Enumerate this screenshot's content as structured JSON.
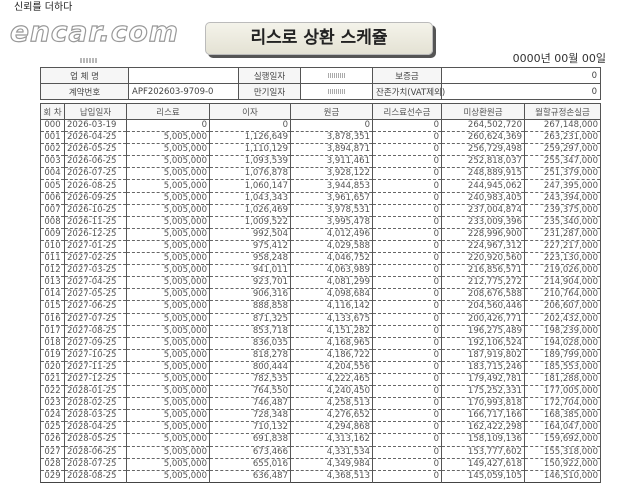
{
  "title": "리스로 상환 스케쥴",
  "print_date": "0000년 00월 00일",
  "info": {
    "company_label": "업 체 명",
    "company_value": "",
    "exec_date_label": "실행일자",
    "deposit_label": "보증금",
    "deposit_value": "0",
    "contract_label": "계약번호",
    "contract_value": "APF202603-9709-0",
    "maturity_label": "만기일자",
    "residual_label": "잔존가치(VAT제외)",
    "residual_value": "0"
  },
  "schedule": {
    "headers": [
      "회 차",
      "납입일자",
      "리스료",
      "이자",
      "원금",
      "리스료선수금",
      "미상환원금",
      "월할규정손실금"
    ],
    "rows": [
      [
        "000",
        "2026-03-19",
        "0",
        "0",
        "0",
        "0",
        "264,502,720",
        "267,148,000"
      ],
      [
        "001",
        "2026-04-25",
        "5,005,000",
        "1,126,649",
        "3,878,351",
        "0",
        "260,624,369",
        "263,231,000"
      ],
      [
        "002",
        "2026-05-25",
        "5,005,000",
        "1,110,129",
        "3,894,871",
        "0",
        "256,729,498",
        "259,297,000"
      ],
      [
        "003",
        "2026-06-25",
        "5,005,000",
        "1,093,539",
        "3,911,461",
        "0",
        "252,818,037",
        "255,347,000"
      ],
      [
        "004",
        "2026-07-25",
        "5,005,000",
        "1,076,878",
        "3,928,122",
        "0",
        "248,889,915",
        "251,379,000"
      ],
      [
        "005",
        "2026-08-25",
        "5,005,000",
        "1,060,147",
        "3,944,853",
        "0",
        "244,945,062",
        "247,395,000"
      ],
      [
        "006",
        "2026-09-25",
        "5,005,000",
        "1,043,343",
        "3,961,657",
        "0",
        "240,983,405",
        "243,394,000"
      ],
      [
        "007",
        "2026-10-25",
        "5,005,000",
        "1,026,469",
        "3,978,531",
        "0",
        "237,004,874",
        "239,375,000"
      ],
      [
        "008",
        "2026-11-25",
        "5,005,000",
        "1,009,522",
        "3,995,478",
        "0",
        "233,009,396",
        "235,340,000"
      ],
      [
        "009",
        "2026-12-25",
        "5,005,000",
        "992,504",
        "4,012,496",
        "0",
        "228,996,900",
        "231,287,000"
      ],
      [
        "010",
        "2027-01-25",
        "5,005,000",
        "975,412",
        "4,029,588",
        "0",
        "224,967,312",
        "227,217,000"
      ],
      [
        "011",
        "2027-02-25",
        "5,005,000",
        "958,248",
        "4,046,752",
        "0",
        "220,920,560",
        "223,130,000"
      ],
      [
        "012",
        "2027-03-25",
        "5,005,000",
        "941,011",
        "4,063,989",
        "0",
        "216,856,571",
        "219,026,000"
      ],
      [
        "013",
        "2027-04-25",
        "5,005,000",
        "923,701",
        "4,081,299",
        "0",
        "212,775,272",
        "214,904,000"
      ],
      [
        "014",
        "2027-05-25",
        "5,005,000",
        "906,316",
        "4,098,684",
        "0",
        "208,676,588",
        "210,764,000"
      ],
      [
        "015",
        "2027-06-25",
        "5,005,000",
        "888,858",
        "4,116,142",
        "0",
        "204,560,446",
        "206,607,000"
      ],
      [
        "016",
        "2027-07-25",
        "5,005,000",
        "871,325",
        "4,133,675",
        "0",
        "200,426,771",
        "202,432,000"
      ],
      [
        "017",
        "2027-08-25",
        "5,005,000",
        "853,718",
        "4,151,282",
        "0",
        "196,275,489",
        "198,239,000"
      ],
      [
        "018",
        "2027-09-25",
        "5,005,000",
        "836,035",
        "4,168,965",
        "0",
        "192,106,524",
        "194,028,000"
      ],
      [
        "019",
        "2027-10-25",
        "5,005,000",
        "818,278",
        "4,186,722",
        "0",
        "187,919,802",
        "189,799,000"
      ],
      [
        "020",
        "2027-11-25",
        "5,005,000",
        "800,444",
        "4,204,556",
        "0",
        "183,715,246",
        "185,553,000"
      ],
      [
        "021",
        "2027-12-25",
        "5,005,000",
        "782,535",
        "4,222,465",
        "0",
        "179,492,781",
        "181,288,000"
      ],
      [
        "022",
        "2028-01-25",
        "5,005,000",
        "764,550",
        "4,240,450",
        "0",
        "175,252,331",
        "177,005,000"
      ],
      [
        "023",
        "2028-02-25",
        "5,005,000",
        "746,487",
        "4,258,513",
        "0",
        "170,993,818",
        "172,704,000"
      ],
      [
        "024",
        "2028-03-25",
        "5,005,000",
        "728,348",
        "4,276,652",
        "0",
        "166,717,166",
        "168,385,000"
      ],
      [
        "025",
        "2028-04-25",
        "5,005,000",
        "710,132",
        "4,294,868",
        "0",
        "162,422,298",
        "164,047,000"
      ],
      [
        "026",
        "2028-05-25",
        "5,005,000",
        "691,838",
        "4,313,162",
        "0",
        "158,109,136",
        "159,692,000"
      ],
      [
        "027",
        "2028-06-25",
        "5,005,000",
        "673,466",
        "4,331,534",
        "0",
        "153,777,602",
        "155,318,000"
      ],
      [
        "028",
        "2028-07-25",
        "5,005,000",
        "655,016",
        "4,349,984",
        "0",
        "149,427,618",
        "150,922,000"
      ],
      [
        "029",
        "2028-08-25",
        "5,005,000",
        "636,487",
        "4,368,513",
        "0",
        "145,059,105",
        "146,510,000"
      ]
    ]
  },
  "watermark": {
    "slogan": "신뢰를 더하다",
    "logo": "encar.com"
  }
}
